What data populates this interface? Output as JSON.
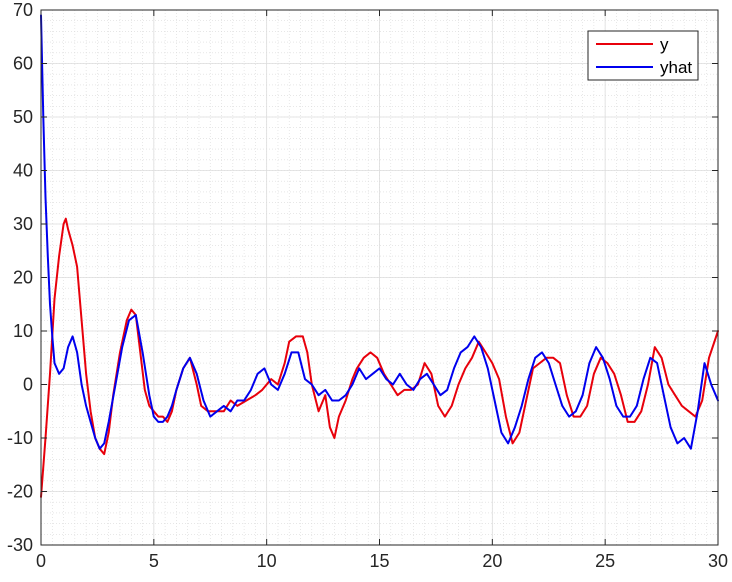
{
  "chart_data": {
    "type": "line",
    "title": "",
    "xlabel": "",
    "ylabel": "",
    "xlim": [
      0,
      30
    ],
    "ylim": [
      -30,
      70
    ],
    "xticks": [
      0,
      5,
      10,
      15,
      20,
      25,
      30
    ],
    "yticks": [
      -30,
      -20,
      -10,
      0,
      10,
      20,
      30,
      40,
      50,
      60,
      70
    ],
    "xtick_labels": [
      "0",
      "5",
      "10",
      "15",
      "20",
      "25",
      "30"
    ],
    "ytick_labels": [
      "-30",
      "-20",
      "-10",
      "0",
      "10",
      "20",
      "30",
      "40",
      "50",
      "60",
      "70"
    ],
    "grid": true,
    "minor_grid": true,
    "legend_position": "top-right",
    "series": [
      {
        "name": "y",
        "color": "#e8000b",
        "x": [
          0,
          0.2,
          0.4,
          0.6,
          0.8,
          1.0,
          1.1,
          1.2,
          1.4,
          1.6,
          1.8,
          2.0,
          2.2,
          2.4,
          2.6,
          2.8,
          3.0,
          3.2,
          3.5,
          3.8,
          4.0,
          4.2,
          4.4,
          4.6,
          4.8,
          5.0,
          5.2,
          5.4,
          5.6,
          5.8,
          6.0,
          6.3,
          6.6,
          6.9,
          7.1,
          7.4,
          7.8,
          8.1,
          8.4,
          8.7,
          9.1,
          9.5,
          9.8,
          10.2,
          10.5,
          10.8,
          11.0,
          11.3,
          11.6,
          11.8,
          12.0,
          12.3,
          12.6,
          12.8,
          13.0,
          13.2,
          13.5,
          13.8,
          14.0,
          14.3,
          14.6,
          14.9,
          15.2,
          15.5,
          15.8,
          16.1,
          16.4,
          16.7,
          17.0,
          17.3,
          17.6,
          17.9,
          18.2,
          18.5,
          18.8,
          19.1,
          19.4,
          19.7,
          20.0,
          20.3,
          20.6,
          20.9,
          21.2,
          21.5,
          21.8,
          22.1,
          22.4,
          22.7,
          23.0,
          23.3,
          23.6,
          23.9,
          24.2,
          24.5,
          24.8,
          25.1,
          25.4,
          25.7,
          26.0,
          26.3,
          26.6,
          26.9,
          27.2,
          27.5,
          27.8,
          28.1,
          28.4,
          28.7,
          29.0,
          29.3,
          29.6,
          30.0
        ],
        "values": [
          -21,
          -10,
          2,
          16,
          24,
          30,
          31,
          29,
          26,
          22,
          12,
          2,
          -5,
          -10,
          -12,
          -13,
          -9,
          -2,
          6,
          12,
          14,
          13,
          6,
          -1,
          -4,
          -5,
          -6,
          -6,
          -7,
          -5,
          -1,
          3,
          5,
          0,
          -4,
          -5,
          -5,
          -5,
          -3,
          -4,
          -3,
          -2,
          -1,
          1,
          0,
          4,
          8,
          9,
          9,
          6,
          0,
          -5,
          -2,
          -8,
          -10,
          -6,
          -3,
          1,
          3,
          5,
          6,
          5,
          2,
          0,
          -2,
          -1,
          -1,
          0,
          4,
          2,
          -4,
          -6,
          -4,
          0,
          3,
          5,
          8,
          6,
          4,
          1,
          -6,
          -11,
          -9,
          -3,
          3,
          4,
          5,
          5,
          4,
          -2,
          -6,
          -6,
          -4,
          2,
          5,
          4,
          2,
          -2,
          -7,
          -7,
          -5,
          0,
          7,
          5,
          0,
          -2,
          -4,
          -5,
          -6,
          -3,
          5,
          10
        ]
      },
      {
        "name": "yhat",
        "color": "#0000ee",
        "x": [
          0,
          0.1,
          0.2,
          0.3,
          0.4,
          0.5,
          0.6,
          0.8,
          1.0,
          1.2,
          1.4,
          1.6,
          1.8,
          2.0,
          2.2,
          2.4,
          2.6,
          2.8,
          3.0,
          3.3,
          3.6,
          3.9,
          4.2,
          4.5,
          4.8,
          5.0,
          5.2,
          5.4,
          5.6,
          5.8,
          6.0,
          6.3,
          6.6,
          6.9,
          7.2,
          7.5,
          7.8,
          8.1,
          8.4,
          8.7,
          9.0,
          9.3,
          9.6,
          9.9,
          10.2,
          10.5,
          10.8,
          11.1,
          11.4,
          11.7,
          12.0,
          12.3,
          12.6,
          12.9,
          13.2,
          13.5,
          13.8,
          14.1,
          14.4,
          14.7,
          15.0,
          15.3,
          15.6,
          15.9,
          16.2,
          16.5,
          16.8,
          17.1,
          17.4,
          17.7,
          18.0,
          18.3,
          18.6,
          18.9,
          19.2,
          19.5,
          19.8,
          20.1,
          20.4,
          20.7,
          21.0,
          21.3,
          21.6,
          21.9,
          22.2,
          22.5,
          22.8,
          23.1,
          23.4,
          23.7,
          24.0,
          24.3,
          24.6,
          24.9,
          25.2,
          25.5,
          25.8,
          26.1,
          26.4,
          26.7,
          27.0,
          27.3,
          27.6,
          27.9,
          28.2,
          28.5,
          28.8,
          29.1,
          29.4,
          29.7,
          30.0
        ],
        "values": [
          69,
          50,
          35,
          24,
          15,
          9,
          4,
          2,
          3,
          7,
          9,
          6,
          0,
          -4,
          -7,
          -10,
          -12,
          -11,
          -7,
          0,
          7,
          12,
          13,
          6,
          -2,
          -6,
          -7,
          -7,
          -6,
          -4,
          -1,
          3,
          5,
          2,
          -3,
          -6,
          -5,
          -4,
          -5,
          -3,
          -3,
          -1,
          2,
          3,
          0,
          -1,
          2,
          6,
          6,
          1,
          0,
          -2,
          -1,
          -3,
          -3,
          -2,
          0,
          3,
          1,
          2,
          3,
          1,
          0,
          2,
          0,
          -1,
          1,
          2,
          0,
          -2,
          -1,
          3,
          6,
          7,
          9,
          7,
          3,
          -3,
          -9,
          -11,
          -8,
          -4,
          1,
          5,
          6,
          4,
          0,
          -4,
          -6,
          -5,
          -2,
          4,
          7,
          5,
          1,
          -4,
          -6,
          -6,
          -4,
          1,
          5,
          4,
          -2,
          -8,
          -11,
          -10,
          -12,
          -5,
          4,
          0,
          -3
        ]
      }
    ]
  }
}
